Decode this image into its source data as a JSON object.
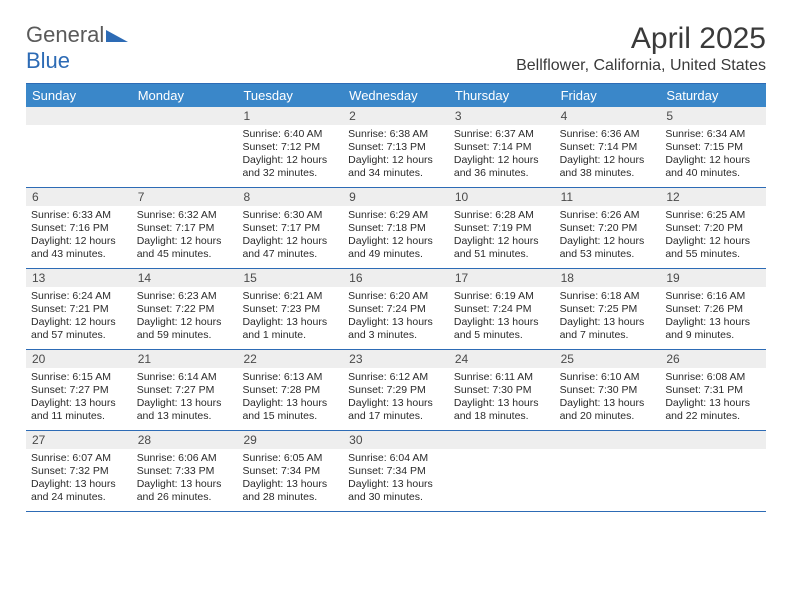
{
  "logo": {
    "word1": "General",
    "word2": "Blue"
  },
  "title": "April 2025",
  "location": "Bellflower, California, United States",
  "colors": {
    "header_bar": "#3a87c9",
    "border": "#2d6bb5",
    "daynum_bg": "#eeeeee",
    "text": "#2a2a2a",
    "logo_gray": "#5a5a5a",
    "logo_blue": "#2d6bb5"
  },
  "day_names": [
    "Sunday",
    "Monday",
    "Tuesday",
    "Wednesday",
    "Thursday",
    "Friday",
    "Saturday"
  ],
  "weeks": [
    [
      {
        "empty": true
      },
      {
        "empty": true
      },
      {
        "num": "1",
        "sunrise": "6:40 AM",
        "sunset": "7:12 PM",
        "daylight": "12 hours and 32 minutes."
      },
      {
        "num": "2",
        "sunrise": "6:38 AM",
        "sunset": "7:13 PM",
        "daylight": "12 hours and 34 minutes."
      },
      {
        "num": "3",
        "sunrise": "6:37 AM",
        "sunset": "7:14 PM",
        "daylight": "12 hours and 36 minutes."
      },
      {
        "num": "4",
        "sunrise": "6:36 AM",
        "sunset": "7:14 PM",
        "daylight": "12 hours and 38 minutes."
      },
      {
        "num": "5",
        "sunrise": "6:34 AM",
        "sunset": "7:15 PM",
        "daylight": "12 hours and 40 minutes."
      }
    ],
    [
      {
        "num": "6",
        "sunrise": "6:33 AM",
        "sunset": "7:16 PM",
        "daylight": "12 hours and 43 minutes."
      },
      {
        "num": "7",
        "sunrise": "6:32 AM",
        "sunset": "7:17 PM",
        "daylight": "12 hours and 45 minutes."
      },
      {
        "num": "8",
        "sunrise": "6:30 AM",
        "sunset": "7:17 PM",
        "daylight": "12 hours and 47 minutes."
      },
      {
        "num": "9",
        "sunrise": "6:29 AM",
        "sunset": "7:18 PM",
        "daylight": "12 hours and 49 minutes."
      },
      {
        "num": "10",
        "sunrise": "6:28 AM",
        "sunset": "7:19 PM",
        "daylight": "12 hours and 51 minutes."
      },
      {
        "num": "11",
        "sunrise": "6:26 AM",
        "sunset": "7:20 PM",
        "daylight": "12 hours and 53 minutes."
      },
      {
        "num": "12",
        "sunrise": "6:25 AM",
        "sunset": "7:20 PM",
        "daylight": "12 hours and 55 minutes."
      }
    ],
    [
      {
        "num": "13",
        "sunrise": "6:24 AM",
        "sunset": "7:21 PM",
        "daylight": "12 hours and 57 minutes."
      },
      {
        "num": "14",
        "sunrise": "6:23 AM",
        "sunset": "7:22 PM",
        "daylight": "12 hours and 59 minutes."
      },
      {
        "num": "15",
        "sunrise": "6:21 AM",
        "sunset": "7:23 PM",
        "daylight": "13 hours and 1 minute."
      },
      {
        "num": "16",
        "sunrise": "6:20 AM",
        "sunset": "7:24 PM",
        "daylight": "13 hours and 3 minutes."
      },
      {
        "num": "17",
        "sunrise": "6:19 AM",
        "sunset": "7:24 PM",
        "daylight": "13 hours and 5 minutes."
      },
      {
        "num": "18",
        "sunrise": "6:18 AM",
        "sunset": "7:25 PM",
        "daylight": "13 hours and 7 minutes."
      },
      {
        "num": "19",
        "sunrise": "6:16 AM",
        "sunset": "7:26 PM",
        "daylight": "13 hours and 9 minutes."
      }
    ],
    [
      {
        "num": "20",
        "sunrise": "6:15 AM",
        "sunset": "7:27 PM",
        "daylight": "13 hours and 11 minutes."
      },
      {
        "num": "21",
        "sunrise": "6:14 AM",
        "sunset": "7:27 PM",
        "daylight": "13 hours and 13 minutes."
      },
      {
        "num": "22",
        "sunrise": "6:13 AM",
        "sunset": "7:28 PM",
        "daylight": "13 hours and 15 minutes."
      },
      {
        "num": "23",
        "sunrise": "6:12 AM",
        "sunset": "7:29 PM",
        "daylight": "13 hours and 17 minutes."
      },
      {
        "num": "24",
        "sunrise": "6:11 AM",
        "sunset": "7:30 PM",
        "daylight": "13 hours and 18 minutes."
      },
      {
        "num": "25",
        "sunrise": "6:10 AM",
        "sunset": "7:30 PM",
        "daylight": "13 hours and 20 minutes."
      },
      {
        "num": "26",
        "sunrise": "6:08 AM",
        "sunset": "7:31 PM",
        "daylight": "13 hours and 22 minutes."
      }
    ],
    [
      {
        "num": "27",
        "sunrise": "6:07 AM",
        "sunset": "7:32 PM",
        "daylight": "13 hours and 24 minutes."
      },
      {
        "num": "28",
        "sunrise": "6:06 AM",
        "sunset": "7:33 PM",
        "daylight": "13 hours and 26 minutes."
      },
      {
        "num": "29",
        "sunrise": "6:05 AM",
        "sunset": "7:34 PM",
        "daylight": "13 hours and 28 minutes."
      },
      {
        "num": "30",
        "sunrise": "6:04 AM",
        "sunset": "7:34 PM",
        "daylight": "13 hours and 30 minutes."
      },
      {
        "empty": true
      },
      {
        "empty": true
      },
      {
        "empty": true
      }
    ]
  ]
}
